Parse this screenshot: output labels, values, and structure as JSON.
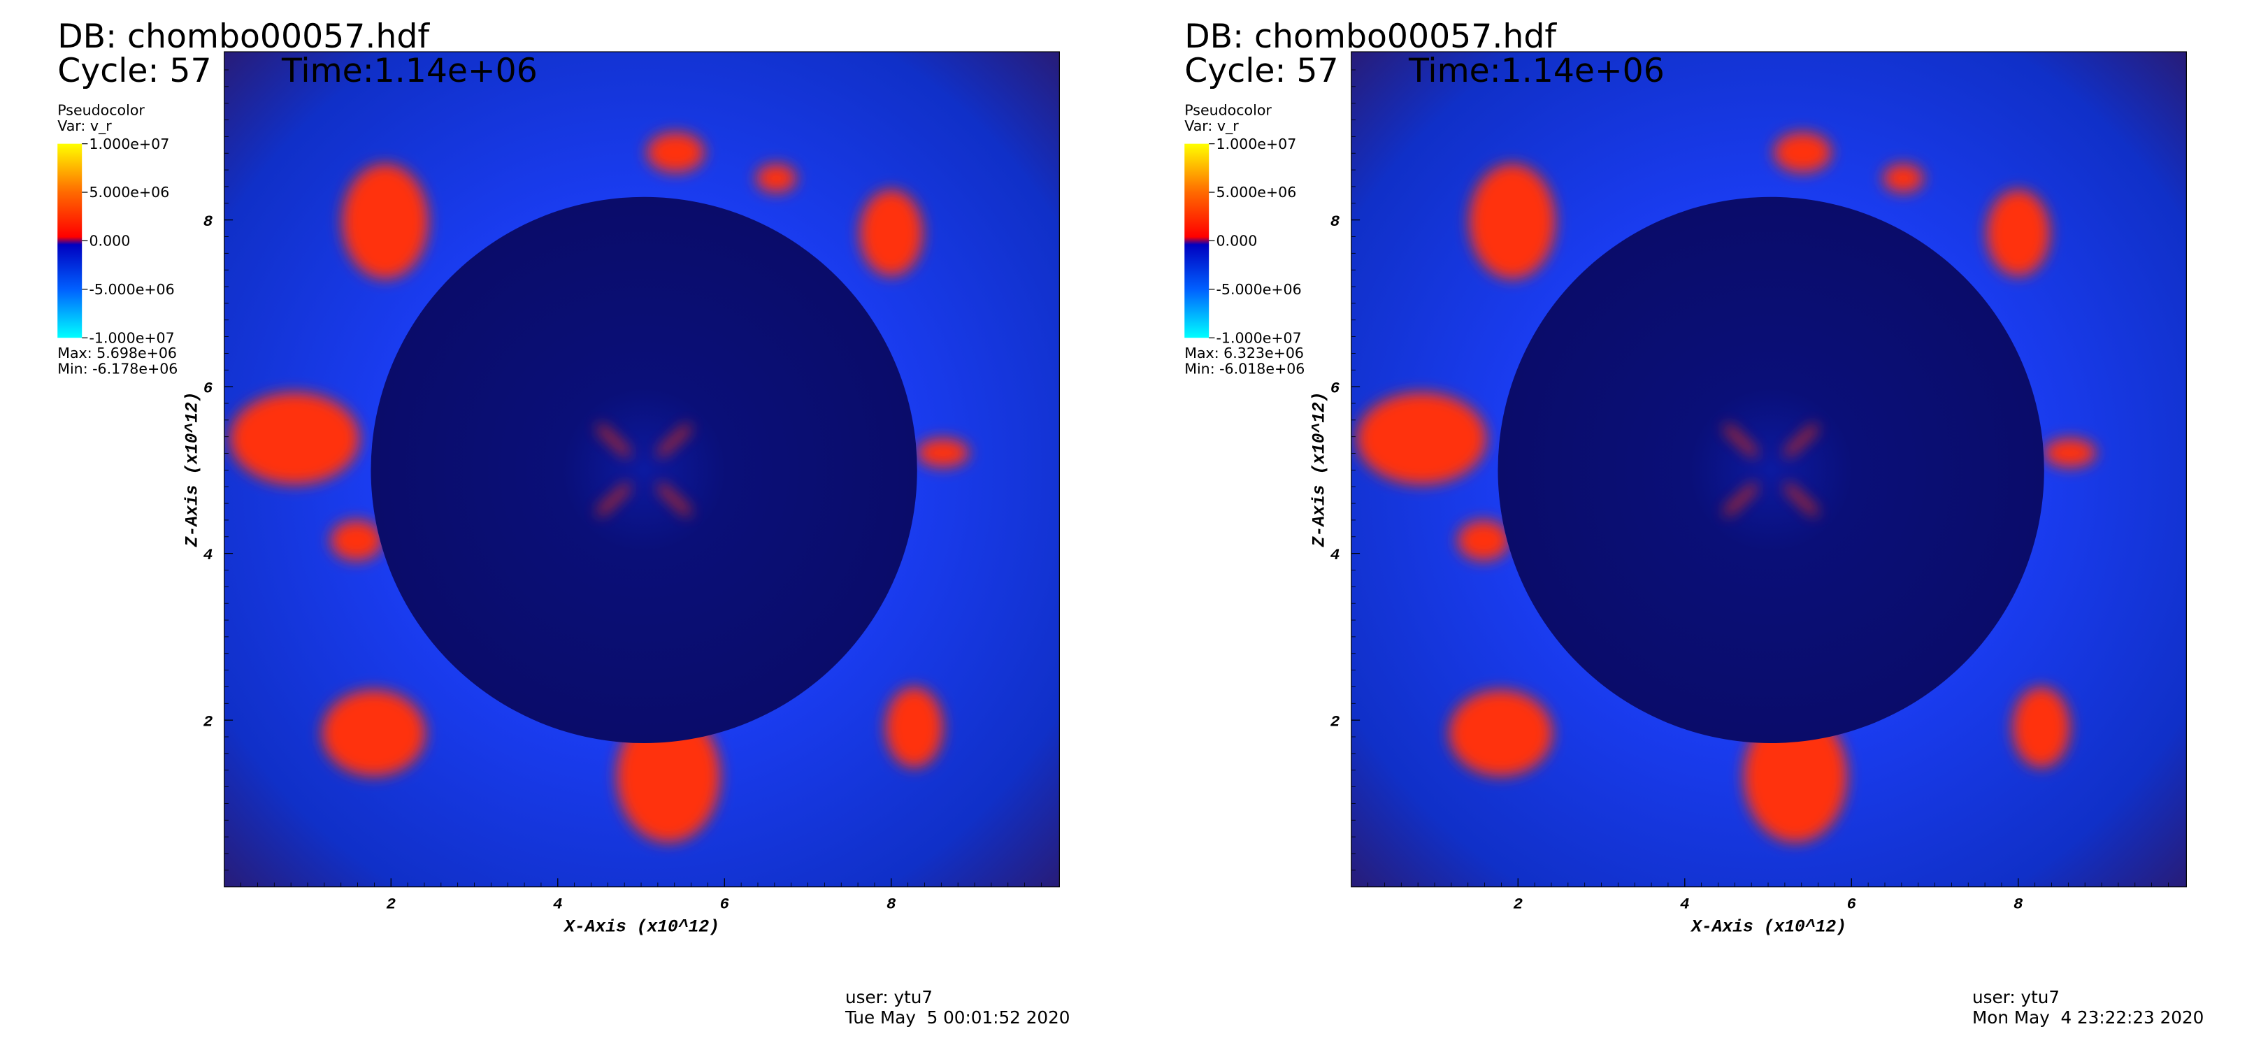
{
  "panels": [
    {
      "db": "DB: chombo00057.hdf",
      "cycle": "Cycle: 57",
      "time": "Time:1.14e+06",
      "legend": {
        "title": "Pseudocolor",
        "var": "Var: v_r",
        "ticks": [
          "1.000e+07",
          "5.000e+06",
          "0.000",
          "-5.000e+06",
          "-1.000e+07"
        ],
        "max": "Max:  5.698e+06",
        "min": "Min: -6.178e+06"
      },
      "x_title": "X-Axis (x10^12)",
      "y_title": "Z-Axis (x10^12)",
      "xticks": [
        "2",
        "4",
        "6",
        "8"
      ],
      "yticks": [
        "2",
        "4",
        "6",
        "8"
      ],
      "user": "user: ytu7",
      "date": "Tue May  5 00:01:52 2020"
    },
    {
      "db": "DB: chombo00057.hdf",
      "cycle": "Cycle: 57",
      "time": "Time:1.14e+06",
      "legend": {
        "title": "Pseudocolor",
        "var": "Var: v_r",
        "ticks": [
          "1.000e+07",
          "5.000e+06",
          "0.000",
          "-5.000e+06",
          "-1.000e+07"
        ],
        "max": "Max:  6.323e+06",
        "min": "Min: -6.018e+06"
      },
      "x_title": "X-Axis (x10^12)",
      "y_title": "Z-Axis (x10^12)",
      "xticks": [
        "2",
        "4",
        "6",
        "8"
      ],
      "yticks": [
        "2",
        "4",
        "6",
        "8"
      ],
      "user": "user: ytu7",
      "date": "Mon May  4 23:22:23 2020"
    }
  ]
}
